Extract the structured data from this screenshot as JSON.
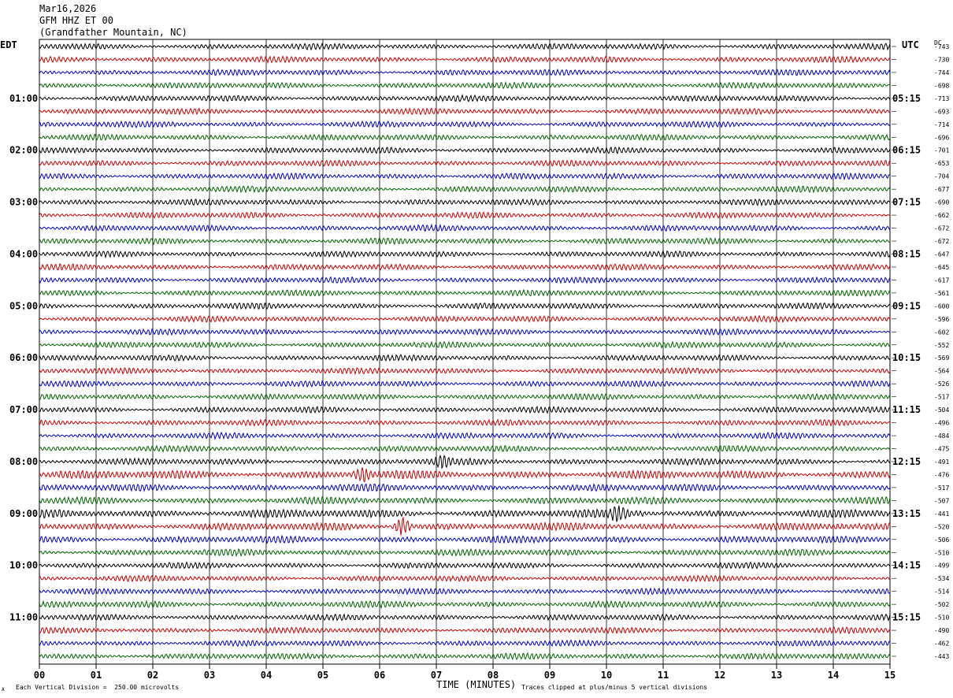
{
  "header": {
    "date": "Mar16,2026",
    "station": "GFM HHZ ET 00",
    "location": "(Grandfather Mountain, NC)"
  },
  "left_tz": "EDT",
  "right_tz": "UTC",
  "dc_label": "DC",
  "footer": {
    "scale_note": "Each Vertical Division =  250.00 microvolts",
    "clip_note": "Traces clipped at plus/minus 5 vertical divisions",
    "corner_mark": "A"
  },
  "colors": {
    "trace_cycle": [
      "#000000",
      "#cc0000",
      "#0000cc",
      "#006400"
    ],
    "grid": "#000000"
  },
  "chart_data": {
    "type": "line",
    "xlabel": "TIME (MINUTES)",
    "x_ticks": [
      "00",
      "01",
      "02",
      "03",
      "04",
      "05",
      "06",
      "07",
      "08",
      "09",
      "10",
      "11",
      "12",
      "13",
      "14",
      "15"
    ],
    "xlim": [
      0,
      15
    ],
    "rows_per_hour": 4,
    "left_hour_labels": [
      "01:00",
      "02:00",
      "03:00",
      "04:00",
      "05:00",
      "06:00",
      "07:00",
      "08:00",
      "09:00",
      "10:00",
      "11:00"
    ],
    "right_hour_labels": [
      "05:15",
      "06:15",
      "07:15",
      "08:15",
      "09:15",
      "10:15",
      "11:15",
      "12:15",
      "13:15",
      "14:15",
      "15:15"
    ],
    "dc_offsets": [
      "-743",
      "-730",
      "-744",
      "-698",
      "-713",
      "-693",
      "-714",
      "-696",
      "-701",
      "-653",
      "-704",
      "-677",
      "-690",
      "-662",
      "-672",
      "-672",
      "-647",
      "-645",
      "-617",
      "-561",
      "-600",
      "-596",
      "-602",
      "-552",
      "-569",
      "-564",
      "-526",
      "-517",
      "-504",
      "-496",
      "-484",
      "-475",
      "-491",
      "-476",
      "-517",
      "-507",
      "-441",
      "-520",
      "-506",
      "-510",
      "-499",
      "-534",
      "-514",
      "-502",
      "-510",
      "-490",
      "-462",
      "-443"
    ],
    "row_amplitude": [
      1,
      1,
      1,
      1,
      1,
      1,
      1,
      1,
      1,
      1,
      1,
      1,
      1,
      1,
      1,
      1,
      1,
      1,
      1,
      1,
      1,
      1,
      1,
      1,
      1,
      1,
      1,
      1,
      1,
      1,
      1,
      1,
      1.1,
      1.4,
      1.2,
      1.2,
      1.4,
      1.3,
      1.2,
      1.1,
      1,
      1,
      1,
      1.1,
      1,
      1,
      1,
      1
    ],
    "events": [
      {
        "row": 33,
        "minute": 5.7,
        "amp": 1.6
      },
      {
        "row": 37,
        "minute": 6.4,
        "amp": 2.6
      },
      {
        "row": 36,
        "minute": 10.2,
        "amp": 1.5
      },
      {
        "row": 32,
        "minute": 7.1,
        "amp": 1.5
      }
    ]
  }
}
